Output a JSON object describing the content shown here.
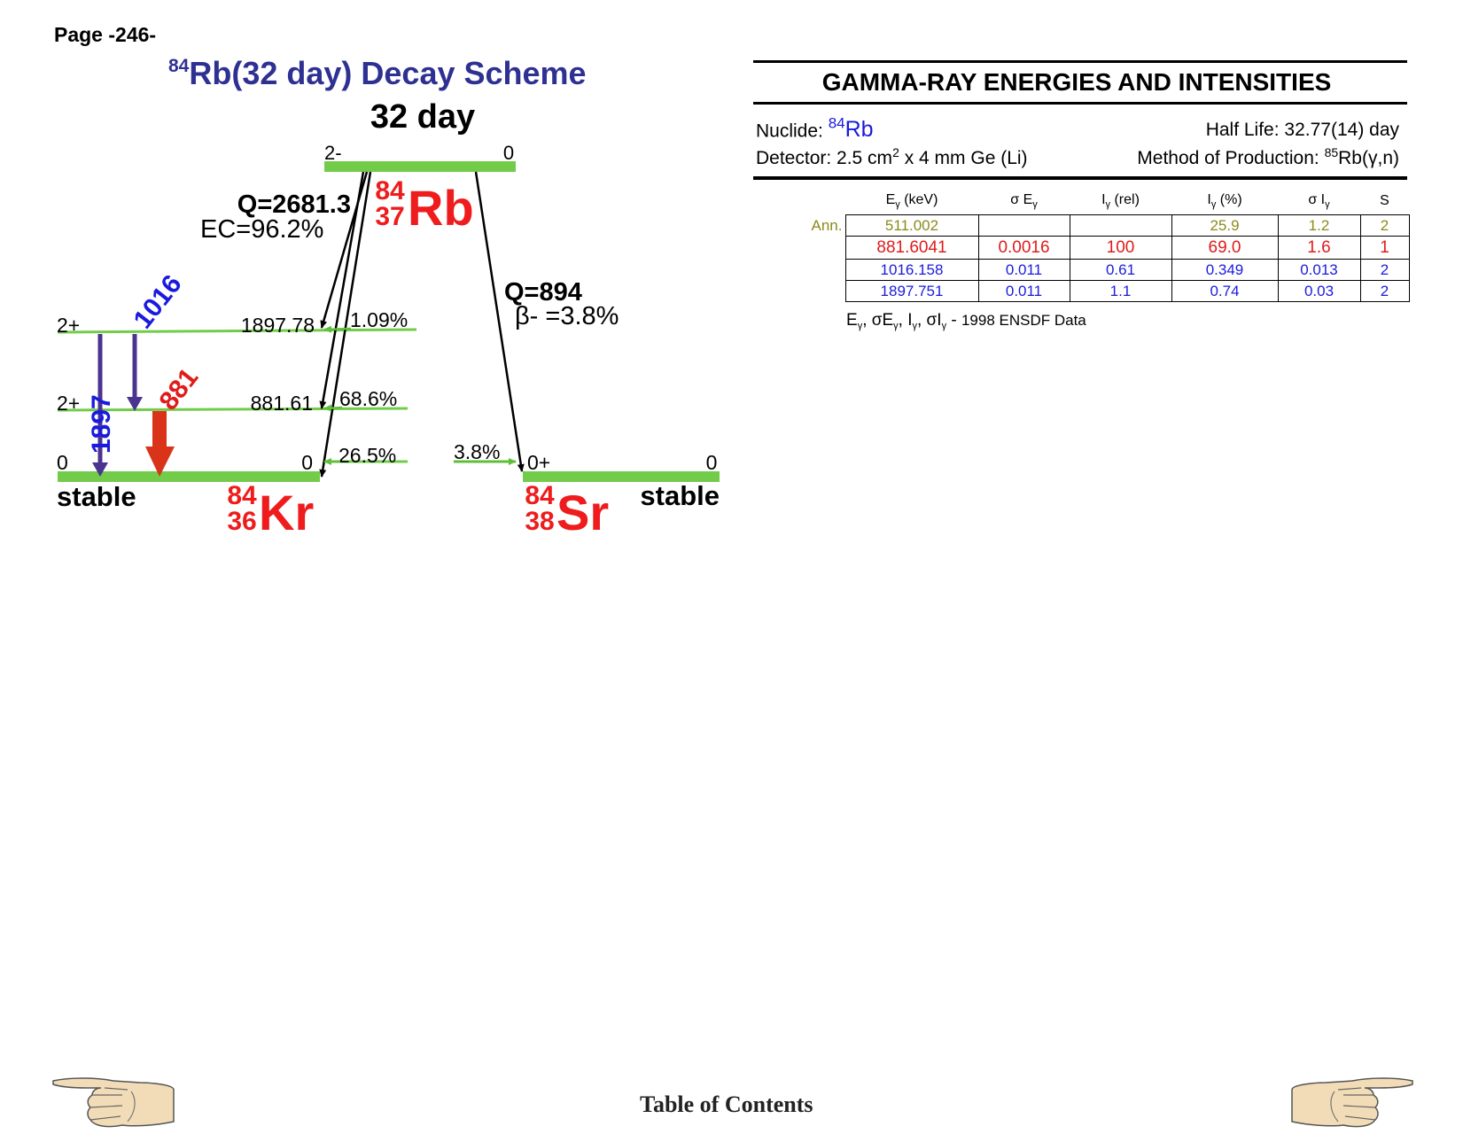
{
  "page": {
    "number": "Page -246-",
    "toc_label": "Table of Contents"
  },
  "scheme": {
    "title_mass": "84",
    "title_text": "Rb(32 day) Decay Scheme",
    "parent_halflife": "32 day",
    "parent": {
      "mass": "84",
      "z": "37",
      "symbol": "Rb",
      "spin": "2-",
      "level_energy": "0"
    },
    "ec_branch": {
      "q": "Q=2681.3",
      "ratio": "EC=96.2%"
    },
    "beta_branch": {
      "q": "Q=894",
      "ratio": "β- =3.8%"
    },
    "daughter_kr": {
      "mass": "84",
      "z": "36",
      "symbol": "Kr",
      "stable_label": "stable",
      "levels": [
        {
          "spin": "2+",
          "energy": "1897.78",
          "feed": "1.09%"
        },
        {
          "spin": "2+",
          "energy": "881.61",
          "feed": "68.6%"
        },
        {
          "spin": "0",
          "energy": "0",
          "feed": "26.5%"
        }
      ]
    },
    "daughter_sr": {
      "mass": "84",
      "z": "38",
      "symbol": "Sr",
      "stable_label": "stable",
      "spin": "0+",
      "energy": "0",
      "feed": "3.8%"
    },
    "gammas": [
      {
        "label": "1897",
        "color": "#1a1adf",
        "arrow_color": "#4b3390"
      },
      {
        "label": "1016",
        "color": "#1a1adf",
        "arrow_color": "#4b3390"
      },
      {
        "label": "881",
        "color": "#e01b1b",
        "arrow_color": "#d9341a"
      }
    ],
    "colors": {
      "level": "#72cc4a",
      "feed_arrow": "#5fbf3a",
      "daughter_label": "#ee1c1c",
      "title": "#2e3192"
    }
  },
  "panel": {
    "title": "GAMMA-RAY ENERGIES AND INTENSITIES",
    "nuclide_label": "Nuclide: ",
    "nuclide_mass": "84",
    "nuclide_symbol": "Rb",
    "half_life": "Half Life: 32.77(14) day",
    "detector_a": "Detector: 2.5 cm",
    "detector_sup": "2",
    "detector_b": " x 4 mm Ge (Li)",
    "method_a": "Method of Production: ",
    "method_sup": "85",
    "method_b": "Rb(γ,n)",
    "table": {
      "headers": [
        {
          "main": "E",
          "sub": "γ",
          "rest": " (keV)"
        },
        {
          "main": "σ E",
          "sub": "γ",
          "rest": ""
        },
        {
          "main": "I",
          "sub": "γ",
          "rest": " (rel)"
        },
        {
          "main": "I",
          "sub": "γ",
          "rest": " (%)"
        },
        {
          "main": "σ I",
          "sub": "γ",
          "rest": ""
        },
        {
          "main": "S",
          "sub": "",
          "rest": ""
        }
      ],
      "rows": [
        {
          "label": "Ann.",
          "color": "#8b8b1a",
          "cells": [
            "511.002",
            "",
            "",
            "25.9",
            "1.2",
            "2"
          ]
        },
        {
          "label": "",
          "color": "#e01b1b",
          "cells": [
            "881.6041",
            "0.0016",
            "100",
            "69.0",
            "1.6",
            "1"
          ]
        },
        {
          "label": "",
          "color": "#1a1adf",
          "cells": [
            "1016.158",
            "0.011",
            "0.61",
            "0.349",
            "0.013",
            "2"
          ]
        },
        {
          "label": "",
          "color": "#1a1adf",
          "cells": [
            "1897.751",
            "0.011",
            "1.1",
            "0.74",
            "0.03",
            "2"
          ]
        }
      ]
    },
    "footnote_source": "1998 ENSDF Data"
  }
}
